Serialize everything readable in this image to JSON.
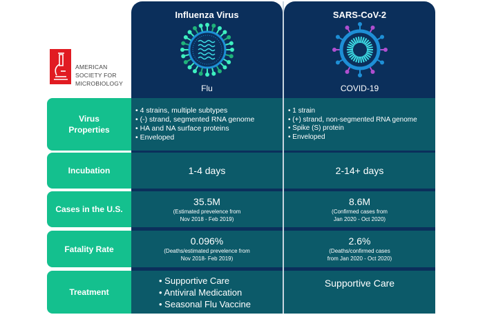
{
  "logo": {
    "line1": "AMERICAN",
    "line2": "SOCIETY FOR",
    "line3": "MICROBIOLOGY",
    "brand_color": "#e11b22"
  },
  "columns": [
    {
      "title": "Influenza Virus",
      "subtitle": "Flu",
      "icon": "influenza-virus-icon"
    },
    {
      "title": "SARS-CoV-2",
      "subtitle": "COVID-19",
      "icon": "coronavirus-icon"
    }
  ],
  "rows": [
    {
      "label": "Virus Properties",
      "flu": [
        "4 strains, multiple subtypes",
        "(-) strand, segmented RNA genome",
        "HA and NA surface proteins",
        "Enveloped"
      ],
      "covid": [
        "1 strain",
        "(+) strand, non-segmented RNA genome",
        "Spike (S) protein",
        "Enveloped"
      ]
    },
    {
      "label": "Incubation",
      "flu": "1-4 days",
      "covid": "2-14+ days"
    },
    {
      "label": "Cases in the U.S.",
      "flu": {
        "value": "35.5M",
        "note1": "(Estimated prevelence from",
        "note2": "Nov 2018 - Feb 2019)"
      },
      "covid": {
        "value": "8.6M",
        "note1": "(Confirmed cases from",
        "note2": "Jan 2020 - Oct 2020)"
      }
    },
    {
      "label": "Fatality Rate",
      "flu": {
        "value": "0.096%",
        "note1": "(Deaths/estimated prevelence from",
        "note2": "Nov 2018- Feb 2019)"
      },
      "covid": {
        "value": "2.6%",
        "note1": "(Deaths/confirmed cases",
        "note2": "from Jan 2020 - Oct 2020)"
      }
    },
    {
      "label": "Treatment",
      "flu": [
        "Supportive Care",
        "Antiviral Medication",
        "Seasonal Flu Vaccine"
      ],
      "covid": "Supportive Care"
    }
  ],
  "colors": {
    "header": "#0b2f5b",
    "label": "#14c08e",
    "cell": "#0c5a69"
  }
}
